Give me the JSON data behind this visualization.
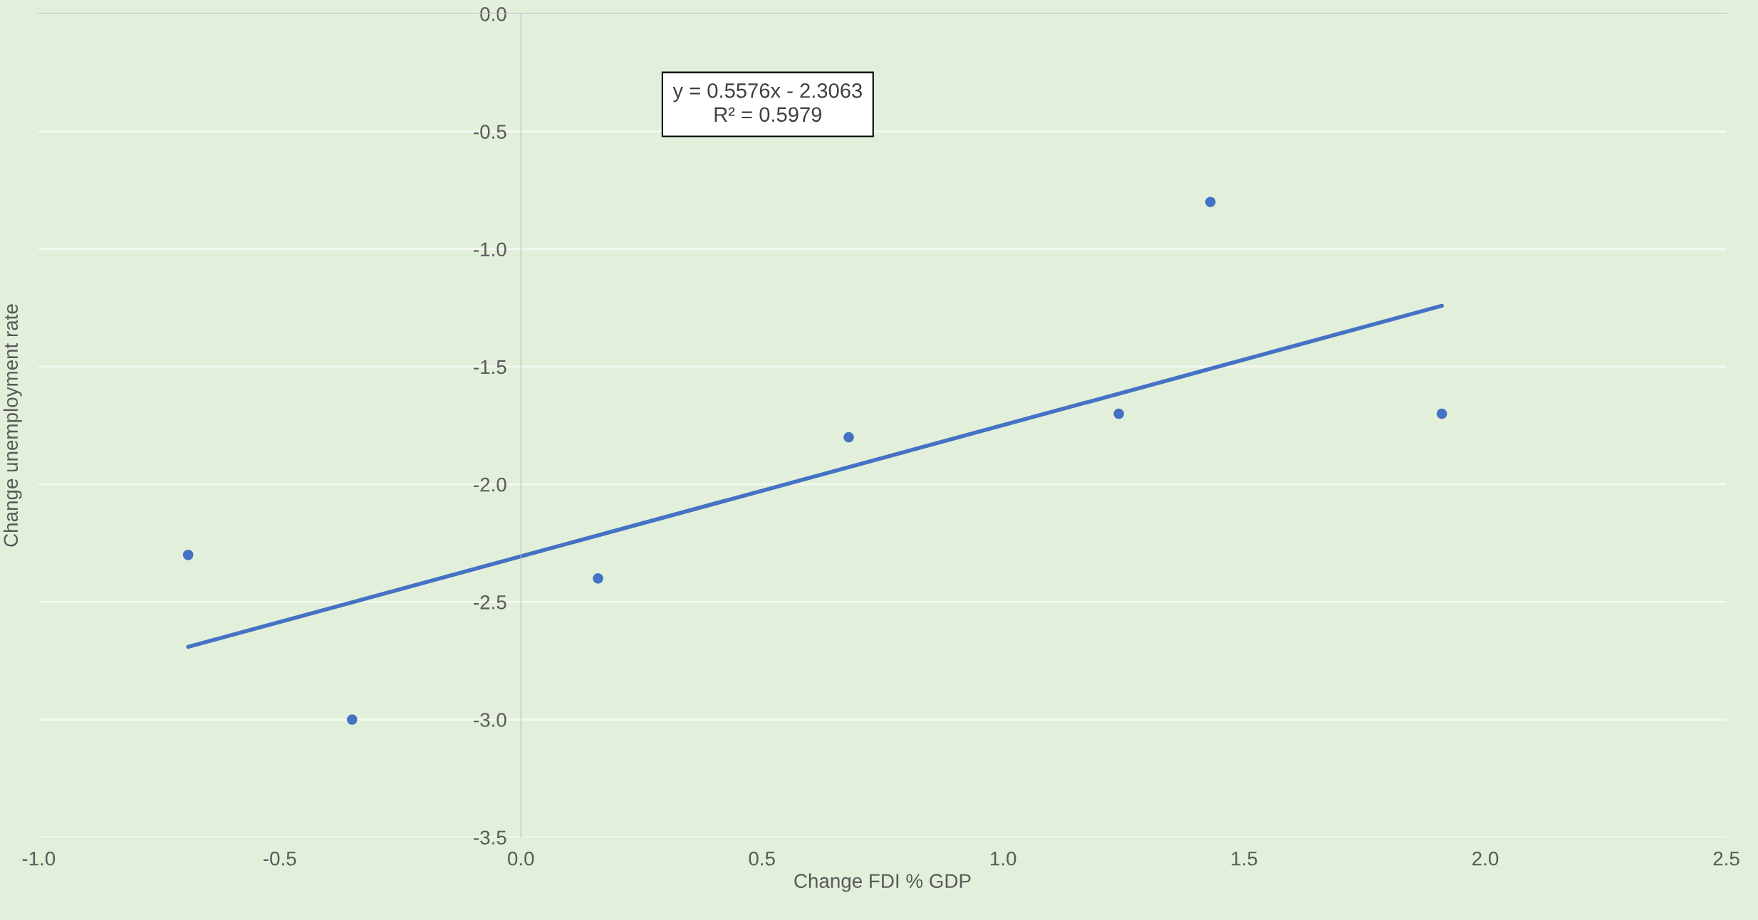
{
  "chart_data": {
    "type": "scatter",
    "xlabel": "Change FDI % GDP",
    "ylabel": "Change unemployment rate",
    "xlim": [
      -1.0,
      2.5
    ],
    "xticks": [
      {
        "value": -1.0,
        "label": "-1.0"
      },
      {
        "value": -0.5,
        "label": "-0.5"
      },
      {
        "value": 0.0,
        "label": "0.0"
      },
      {
        "value": 0.5,
        "label": "0.5"
      },
      {
        "value": 1.0,
        "label": "1.0"
      },
      {
        "value": 1.5,
        "label": "1.5"
      },
      {
        "value": 2.0,
        "label": "2.0"
      },
      {
        "value": 2.5,
        "label": "2.5"
      }
    ],
    "ylim": [
      -3.5,
      0.0
    ],
    "yticks": [
      {
        "value": -3.5,
        "label": "-3.5"
      },
      {
        "value": -3.0,
        "label": "-3.0"
      },
      {
        "value": -2.5,
        "label": "-2.5"
      },
      {
        "value": -2.0,
        "label": "-2.0"
      },
      {
        "value": -1.5,
        "label": "-1.5"
      },
      {
        "value": -1.0,
        "label": "-1.0"
      },
      {
        "value": -0.5,
        "label": "-0.5"
      },
      {
        "value": 0.0,
        "label": "0.0"
      }
    ],
    "grid": "y",
    "series": [
      {
        "marker": "circle",
        "color": "#4472c4",
        "x": [
          -0.69,
          -0.35,
          0.16,
          0.68,
          1.24,
          1.43,
          1.91
        ],
        "values": [
          -2.3,
          -3.0,
          -2.4,
          -1.8,
          -1.7,
          -0.8,
          -1.7
        ]
      },
      {
        "type": "line",
        "marker": "none",
        "color": "#4472c4",
        "x": [
          -0.69,
          1.91
        ],
        "values": [
          -2.691,
          -1.241
        ]
      }
    ],
    "annotations": [
      "y = 0.5576x - 2.3063",
      "R² = 0.5979"
    ]
  }
}
